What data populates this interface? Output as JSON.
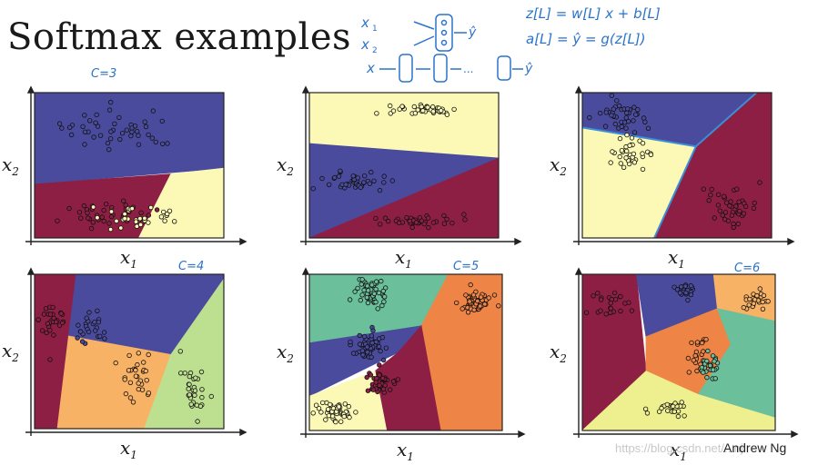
{
  "slide": {
    "title": "Softmax examples",
    "author": "Andrew Ng",
    "watermark": "https://blog.csdn.net/...nj"
  },
  "annotations": {
    "c3": "C=3",
    "c4": "C=4",
    "c5": "C=5",
    "c6": "C=6",
    "eq_z": "z[L] = w[L] x + b[L]",
    "eq_a": "a[L] = ŷ = g(z[L])"
  },
  "palette": {
    "navy": "#4a4b9d",
    "maroon": "#8e1f44",
    "cream": "#fbf9b5",
    "green_lt": "#bddf90",
    "sand": "#f7b265",
    "teal": "#6bbf9b",
    "orange": "#ee8446",
    "lemon": "#eef08f"
  },
  "chart_data": [
    {
      "type": "scatter",
      "xlabel": "x1",
      "ylabel": "x2",
      "classes": 3,
      "note": "C=3",
      "regions": [
        "navy",
        "maroon",
        "cream"
      ],
      "clusters": [
        {
          "color": "navy",
          "n": 45
        },
        {
          "color": "maroon",
          "n": 35
        },
        {
          "color": "cream",
          "n": 30
        }
      ]
    },
    {
      "type": "scatter",
      "xlabel": "x1",
      "ylabel": "x2",
      "classes": 3,
      "regions": [
        "cream",
        "navy",
        "maroon"
      ],
      "clusters": [
        {
          "color": "cream",
          "n": 40
        },
        {
          "color": "navy",
          "n": 40
        },
        {
          "color": "maroon",
          "n": 40
        }
      ]
    },
    {
      "type": "scatter",
      "xlabel": "x1",
      "ylabel": "x2",
      "classes": 3,
      "regions": [
        "navy",
        "cream",
        "maroon"
      ],
      "clusters": [
        {
          "color": "navy",
          "n": 40
        },
        {
          "color": "cream",
          "n": 35
        },
        {
          "color": "maroon",
          "n": 40
        }
      ]
    },
    {
      "type": "scatter",
      "xlabel": "x1",
      "ylabel": "x2",
      "classes": 4,
      "note": "C=4",
      "regions": [
        "maroon",
        "navy",
        "sand",
        "green_lt"
      ],
      "clusters": [
        {
          "color": "maroon",
          "n": 30
        },
        {
          "color": "navy",
          "n": 25
        },
        {
          "color": "sand",
          "n": 30
        },
        {
          "color": "green_lt",
          "n": 30
        }
      ]
    },
    {
      "type": "scatter",
      "xlabel": "x1",
      "ylabel": "x2",
      "classes": 5,
      "note": "C=5",
      "regions": [
        "teal",
        "orange",
        "navy",
        "maroon",
        "cream"
      ],
      "clusters": [
        {
          "color": "teal",
          "n": 50
        },
        {
          "color": "orange",
          "n": 50
        },
        {
          "color": "navy",
          "n": 50
        },
        {
          "color": "maroon",
          "n": 50
        },
        {
          "color": "cream",
          "n": 50
        }
      ]
    },
    {
      "type": "scatter",
      "xlabel": "x1",
      "ylabel": "x2",
      "classes": 6,
      "note": "C=6",
      "regions": [
        "maroon",
        "navy",
        "sand",
        "orange",
        "teal",
        "lemon"
      ],
      "clusters": [
        {
          "color": "maroon",
          "n": 25
        },
        {
          "color": "navy",
          "n": 20
        },
        {
          "color": "sand",
          "n": 25
        },
        {
          "color": "orange",
          "n": 25
        },
        {
          "color": "teal",
          "n": 25
        },
        {
          "color": "lemon",
          "n": 25
        }
      ]
    }
  ]
}
